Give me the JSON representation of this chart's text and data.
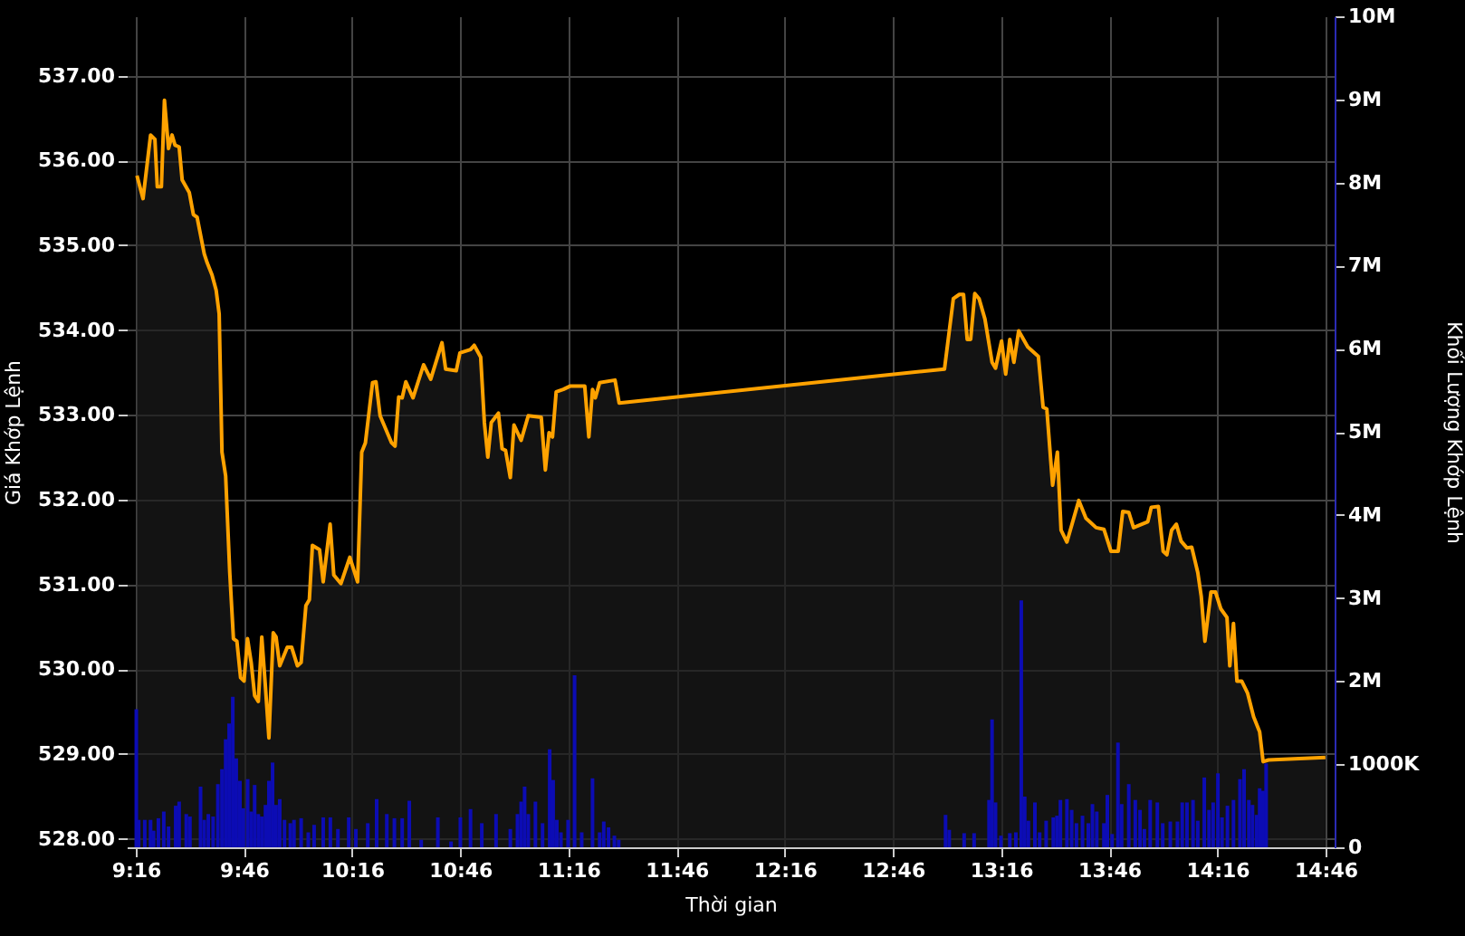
{
  "chart_data": {
    "type": "area",
    "xlabel": "Thời gian",
    "ylabel": "Giá Khớp Lệnh",
    "y2label": "Khối Lượng Khớp Lệnh",
    "xlim": [
      9.2667,
      14.7667
    ],
    "xticks": [
      {
        "value": 9.2667,
        "label": "9:16"
      },
      {
        "value": 9.7667,
        "label": "9:46"
      },
      {
        "value": 10.2667,
        "label": "10:16"
      },
      {
        "value": 10.7667,
        "label": "10:46"
      },
      {
        "value": 11.2667,
        "label": "11:16"
      },
      {
        "value": 11.7667,
        "label": "11:46"
      },
      {
        "value": 12.2667,
        "label": "12:16"
      },
      {
        "value": 12.7667,
        "label": "12:46"
      },
      {
        "value": 13.2667,
        "label": "13:16"
      },
      {
        "value": 13.7667,
        "label": "13:46"
      },
      {
        "value": 14.2667,
        "label": "14:16"
      },
      {
        "value": 14.7667,
        "label": "14:46"
      }
    ],
    "ylim": [
      527.9,
      537.7
    ],
    "yticks": [
      {
        "value": 528,
        "label": "528.00"
      },
      {
        "value": 529,
        "label": "529.00"
      },
      {
        "value": 530,
        "label": "530.00"
      },
      {
        "value": 531,
        "label": "531.00"
      },
      {
        "value": 532,
        "label": "532.00"
      },
      {
        "value": 533,
        "label": "533.00"
      },
      {
        "value": 534,
        "label": "534.00"
      },
      {
        "value": 535,
        "label": "535.00"
      },
      {
        "value": 536,
        "label": "536.00"
      },
      {
        "value": 537,
        "label": "537.00"
      }
    ],
    "y2lim": [
      0,
      10000000
    ],
    "y2ticks": [
      0,
      {
        "value": 1000000,
        "label": "1000K"
      },
      {
        "value": 2000000,
        "label": "2M"
      },
      {
        "value": 3000000,
        "label": "3M"
      },
      {
        "value": 4000000,
        "label": "4M"
      },
      {
        "value": 5000000,
        "label": "5M"
      },
      {
        "value": 6000000,
        "label": "6M"
      },
      {
        "value": 7000000,
        "label": "7M"
      },
      {
        "value": 8000000,
        "label": "8M"
      },
      {
        "value": 9000000,
        "label": "9M"
      },
      {
        "value": 10000000,
        "label": "10M"
      }
    ],
    "grid": true,
    "marker": "none",
    "line_style": "solid",
    "series": [
      {
        "color": "#ffa200",
        "x": [
          9.272,
          9.3,
          9.335,
          9.355,
          9.366,
          9.385,
          9.399,
          9.418,
          9.434,
          9.448,
          9.467,
          9.481,
          9.514,
          9.533,
          9.55,
          9.583,
          9.597,
          9.619,
          9.638,
          9.652,
          9.665,
          9.682,
          9.701,
          9.718,
          9.734,
          9.751,
          9.767,
          9.783,
          9.8,
          9.816,
          9.833,
          9.849,
          9.866,
          9.882,
          9.902,
          9.915,
          9.932,
          9.967,
          9.987,
          10.014,
          10.031,
          10.053,
          10.069,
          10.083,
          10.116,
          10.133,
          10.165,
          10.182,
          10.215,
          10.256,
          10.292,
          10.311,
          10.328,
          10.361,
          10.377,
          10.396,
          10.449,
          10.465,
          10.482,
          10.498,
          10.515,
          10.548,
          10.597,
          10.63,
          10.682,
          10.699,
          10.748,
          10.765,
          10.814,
          10.831,
          10.861,
          10.878,
          10.894,
          10.91,
          10.943,
          10.96,
          10.976,
          10.998,
          11.015,
          11.048,
          11.081,
          11.141,
          11.16,
          11.177,
          11.193,
          11.21,
          11.243,
          11.276,
          11.342,
          11.361,
          11.378,
          11.391,
          11.411,
          11.482,
          11.501,
          13.005,
          13.046,
          13.074,
          13.093,
          13.11,
          13.126,
          13.145,
          13.165,
          13.192,
          13.225,
          13.241,
          13.269,
          13.288,
          13.307,
          13.326,
          13.348,
          13.39,
          13.439,
          13.461,
          13.478,
          13.505,
          13.527,
          13.544,
          13.571,
          13.626,
          13.659,
          13.706,
          13.742,
          13.775,
          13.808,
          13.829,
          13.857,
          13.879,
          13.945,
          13.961,
          13.994,
          14.016,
          14.033,
          14.055,
          14.077,
          14.099,
          14.126,
          14.148,
          14.176,
          14.192,
          14.209,
          14.237,
          14.258,
          14.283,
          14.311,
          14.324,
          14.341,
          14.357,
          14.379,
          14.406,
          14.434,
          14.462,
          14.478,
          14.503,
          14.766
        ],
        "values": [
          535.82,
          535.55,
          536.3,
          536.25,
          535.69,
          535.69,
          536.71,
          536.14,
          536.3,
          536.18,
          536.16,
          535.77,
          535.62,
          535.36,
          535.33,
          534.9,
          534.79,
          534.65,
          534.47,
          534.19,
          532.56,
          532.28,
          531.14,
          530.36,
          530.33,
          529.9,
          529.86,
          530.36,
          530.08,
          529.69,
          529.62,
          530.38,
          529.79,
          529.19,
          530.43,
          530.38,
          530.04,
          530.26,
          530.26,
          530.04,
          530.08,
          530.75,
          530.82,
          531.46,
          531.41,
          531.03,
          531.71,
          531.11,
          531.01,
          531.32,
          531.03,
          532.56,
          532.67,
          533.38,
          533.39,
          532.99,
          532.67,
          532.63,
          533.21,
          533.2,
          533.39,
          533.2,
          533.59,
          533.42,
          533.85,
          533.54,
          533.52,
          533.73,
          533.77,
          533.82,
          533.68,
          532.91,
          532.5,
          532.91,
          533.02,
          532.6,
          532.58,
          532.26,
          532.88,
          532.7,
          532.99,
          532.97,
          532.35,
          532.79,
          532.74,
          533.27,
          533.3,
          533.34,
          533.34,
          532.74,
          533.3,
          533.2,
          533.38,
          533.41,
          533.14,
          533.54,
          534.37,
          534.42,
          534.42,
          533.89,
          533.89,
          534.43,
          534.37,
          534.13,
          533.62,
          533.55,
          533.87,
          533.48,
          533.89,
          533.62,
          533.99,
          533.8,
          533.69,
          533.09,
          533.07,
          532.17,
          532.56,
          531.64,
          531.5,
          531.99,
          531.78,
          531.67,
          531.65,
          531.39,
          531.39,
          531.86,
          531.85,
          531.67,
          531.74,
          531.91,
          531.92,
          531.39,
          531.35,
          531.64,
          531.71,
          531.51,
          531.43,
          531.44,
          531.14,
          530.86,
          530.33,
          530.91,
          530.91,
          530.71,
          530.61,
          530.04,
          530.54,
          529.86,
          529.86,
          529.72,
          529.44,
          529.26,
          528.91,
          528.93,
          528.96
        ]
      },
      {
        "type": "bar",
        "axis": "y2",
        "color": "#0c0cb4",
        "x": [
          9.269,
          9.28,
          9.308,
          9.335,
          9.349,
          9.371,
          9.396,
          9.418,
          9.451,
          9.467,
          9.5,
          9.517,
          9.566,
          9.583,
          9.602,
          9.624,
          9.646,
          9.665,
          9.682,
          9.698,
          9.715,
          9.731,
          9.748,
          9.764,
          9.784,
          9.8,
          9.816,
          9.833,
          9.849,
          9.866,
          9.882,
          9.899,
          9.915,
          9.932,
          9.954,
          9.981,
          9.998,
          10.031,
          10.064,
          10.091,
          10.133,
          10.166,
          10.201,
          10.251,
          10.284,
          10.339,
          10.38,
          10.427,
          10.462,
          10.498,
          10.531,
          10.586,
          10.663,
          10.724,
          10.767,
          10.814,
          10.866,
          10.932,
          10.998,
          11.031,
          11.048,
          11.064,
          11.081,
          11.114,
          11.147,
          11.18,
          11.196,
          11.213,
          11.232,
          11.265,
          11.295,
          11.328,
          11.378,
          11.411,
          11.43,
          11.452,
          11.479,
          11.499,
          13.01,
          13.027,
          13.096,
          13.142,
          13.211,
          13.225,
          13.241,
          13.266,
          13.307,
          13.335,
          13.36,
          13.376,
          13.393,
          13.423,
          13.445,
          13.475,
          13.508,
          13.525,
          13.541,
          13.571,
          13.593,
          13.615,
          13.643,
          13.67,
          13.689,
          13.709,
          13.742,
          13.758,
          13.78,
          13.807,
          13.824,
          13.857,
          13.887,
          13.909,
          13.929,
          13.956,
          13.989,
          14.014,
          14.049,
          14.082,
          14.104,
          14.126,
          14.154,
          14.176,
          14.206,
          14.228,
          14.247,
          14.269,
          14.288,
          14.313,
          14.341,
          14.371,
          14.39,
          14.412,
          14.429,
          14.448,
          14.462,
          14.478,
          14.492
        ],
        "values": [
          1660000,
          330000,
          330000,
          330000,
          200000,
          350000,
          430000,
          250000,
          500000,
          550000,
          400000,
          370000,
          730000,
          330000,
          400000,
          370000,
          760000,
          940000,
          1300000,
          1490000,
          1810000,
          1070000,
          800000,
          470000,
          820000,
          430000,
          750000,
          400000,
          370000,
          510000,
          800000,
          1020000,
          510000,
          580000,
          330000,
          290000,
          330000,
          350000,
          180000,
          270000,
          360000,
          360000,
          220000,
          360000,
          220000,
          290000,
          580000,
          400000,
          350000,
          350000,
          560000,
          90000,
          360000,
          70000,
          360000,
          460000,
          290000,
          400000,
          220000,
          400000,
          550000,
          730000,
          400000,
          550000,
          290000,
          1180000,
          810000,
          330000,
          180000,
          330000,
          2070000,
          180000,
          830000,
          180000,
          310000,
          240000,
          140000,
          90000,
          390000,
          210000,
          170000,
          170000,
          570000,
          1540000,
          540000,
          140000,
          170000,
          180000,
          2970000,
          610000,
          320000,
          540000,
          180000,
          320000,
          360000,
          380000,
          570000,
          580000,
          450000,
          290000,
          380000,
          290000,
          520000,
          430000,
          290000,
          630000,
          160000,
          1260000,
          520000,
          760000,
          570000,
          450000,
          220000,
          570000,
          540000,
          290000,
          310000,
          310000,
          540000,
          540000,
          570000,
          320000,
          840000,
          450000,
          540000,
          890000,
          360000,
          500000,
          570000,
          820000,
          940000,
          570000,
          510000,
          390000,
          710000,
          680000,
          1010000
        ]
      }
    ]
  }
}
